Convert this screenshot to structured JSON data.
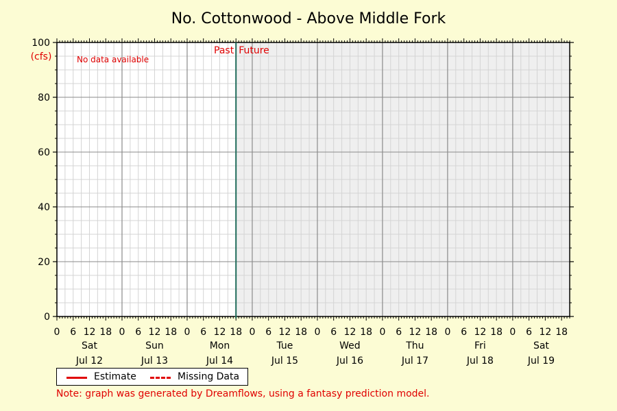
{
  "colors": {
    "background": "#fcfcd4",
    "past_bg": "#ffffff",
    "future_bg": "#efefef",
    "now_line": "#1f6b5a",
    "red": "#e00000",
    "grid_major": "#8a8a8a",
    "grid_minor": "#d4d4d4"
  },
  "chart_data": {
    "type": "line",
    "title": "No. Cottonwood - Above Middle Fork",
    "ylabel": "(cfs)",
    "ylim": [
      0,
      100
    ],
    "yticks": [
      0,
      20,
      40,
      60,
      80,
      100
    ],
    "xlim": [
      "2025-07-12 00:00",
      "2025-07-19 21:00"
    ],
    "now": "2025-07-14 18:00",
    "hour_ticks": [
      "0",
      "6",
      "12",
      "18"
    ],
    "days": [
      {
        "weekday": "Sat",
        "date": "Jul 12"
      },
      {
        "weekday": "Sun",
        "date": "Jul 13"
      },
      {
        "weekday": "Mon",
        "date": "Jul 14"
      },
      {
        "weekday": "Tue",
        "date": "Jul 15"
      },
      {
        "weekday": "Wed",
        "date": "Jul 16"
      },
      {
        "weekday": "Thu",
        "date": "Jul 17"
      },
      {
        "weekday": "Fri",
        "date": "Jul 18"
      },
      {
        "weekday": "Sat",
        "date": "Jul 19"
      }
    ],
    "past_label": "Past",
    "future_label": "Future",
    "no_data_label": "No data available",
    "series": [
      {
        "name": "Estimate",
        "style": "solid",
        "color": "#e00000",
        "values": []
      },
      {
        "name": "Missing Data",
        "style": "dashed",
        "color": "#e00000",
        "values": []
      }
    ],
    "grid": true,
    "legend": "bottom-left"
  },
  "note": "Note: graph was generated by Dreamflows, using a fantasy prediction model."
}
